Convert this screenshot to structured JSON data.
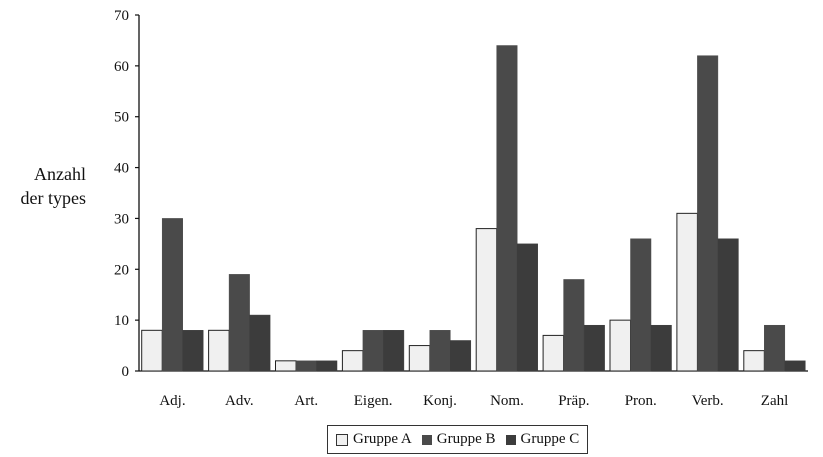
{
  "chart_data": {
    "type": "bar",
    "title": "",
    "xlabel": "",
    "ylabel": "Anzahl der types",
    "ylim": [
      0,
      70
    ],
    "yticks": [
      "0",
      "10",
      "20",
      "30",
      "40",
      "50",
      "60",
      "70"
    ],
    "categories": [
      "Adj.",
      "Adv.",
      "Art.",
      "Eigen.",
      "Konj.",
      "Nom.",
      "Präp.",
      "Pron.",
      "Verb.",
      "Zahl"
    ],
    "series": [
      {
        "name": "Gruppe A",
        "color": "#f0f0f0",
        "values": [
          8,
          8,
          2,
          4,
          5,
          28,
          7,
          10,
          31,
          4
        ]
      },
      {
        "name": "Gruppe B",
        "color": "#4a4a4a",
        "values": [
          30,
          19,
          2,
          8,
          8,
          64,
          18,
          26,
          62,
          9
        ]
      },
      {
        "name": "Gruppe C",
        "color": "#3c3c3c",
        "values": [
          8,
          11,
          2,
          8,
          6,
          25,
          9,
          9,
          26,
          2
        ]
      }
    ],
    "legend_position": "bottom",
    "grid": false
  }
}
